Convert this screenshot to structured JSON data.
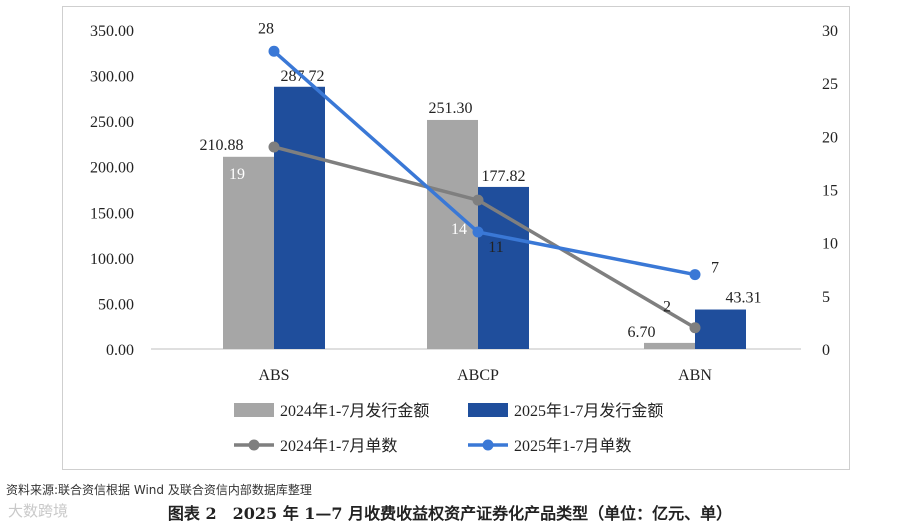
{
  "chart_data": {
    "type": "bar",
    "title": "",
    "categories": [
      "ABS",
      "ABCP",
      "ABN"
    ],
    "left_axis": {
      "ticks": [
        "0.00",
        "50.00",
        "100.00",
        "150.00",
        "200.00",
        "250.00",
        "300.00",
        "350.00"
      ],
      "ylim": [
        0,
        350
      ]
    },
    "right_axis": {
      "ticks": [
        "0",
        "5",
        "10",
        "15",
        "20",
        "25",
        "30"
      ],
      "ylim": [
        0,
        30
      ]
    },
    "bar_series": [
      {
        "name": "2024年1-7月发行金额",
        "color": "#a6a6a6",
        "values": [
          210.88,
          251.3,
          6.7
        ],
        "labels": [
          "210.88",
          "251.30",
          "6.70"
        ]
      },
      {
        "name": "2025年1-7月发行金额",
        "color": "#1f4e9c",
        "values": [
          287.72,
          177.82,
          43.31
        ],
        "labels": [
          "287.72",
          "177.82",
          "43.31"
        ]
      }
    ],
    "line_series": [
      {
        "name": "2024年1-7月单数",
        "color": "#7f7f7f",
        "values": [
          19,
          14,
          2
        ],
        "labels": [
          "19",
          "14",
          "2"
        ]
      },
      {
        "name": "2025年1-7月单数",
        "color": "#3a78d6",
        "values": [
          28,
          11,
          7
        ],
        "labels": [
          "28",
          "11",
          "7"
        ]
      }
    ]
  },
  "source_note": "资料来源:联合资信根据 Wind 及联合资信内部数据库整理",
  "caption": "图表 2　2025 年 1—7 月收费收益权资产证券化产品类型（单位：亿元、单）",
  "watermark": "大数跨境"
}
